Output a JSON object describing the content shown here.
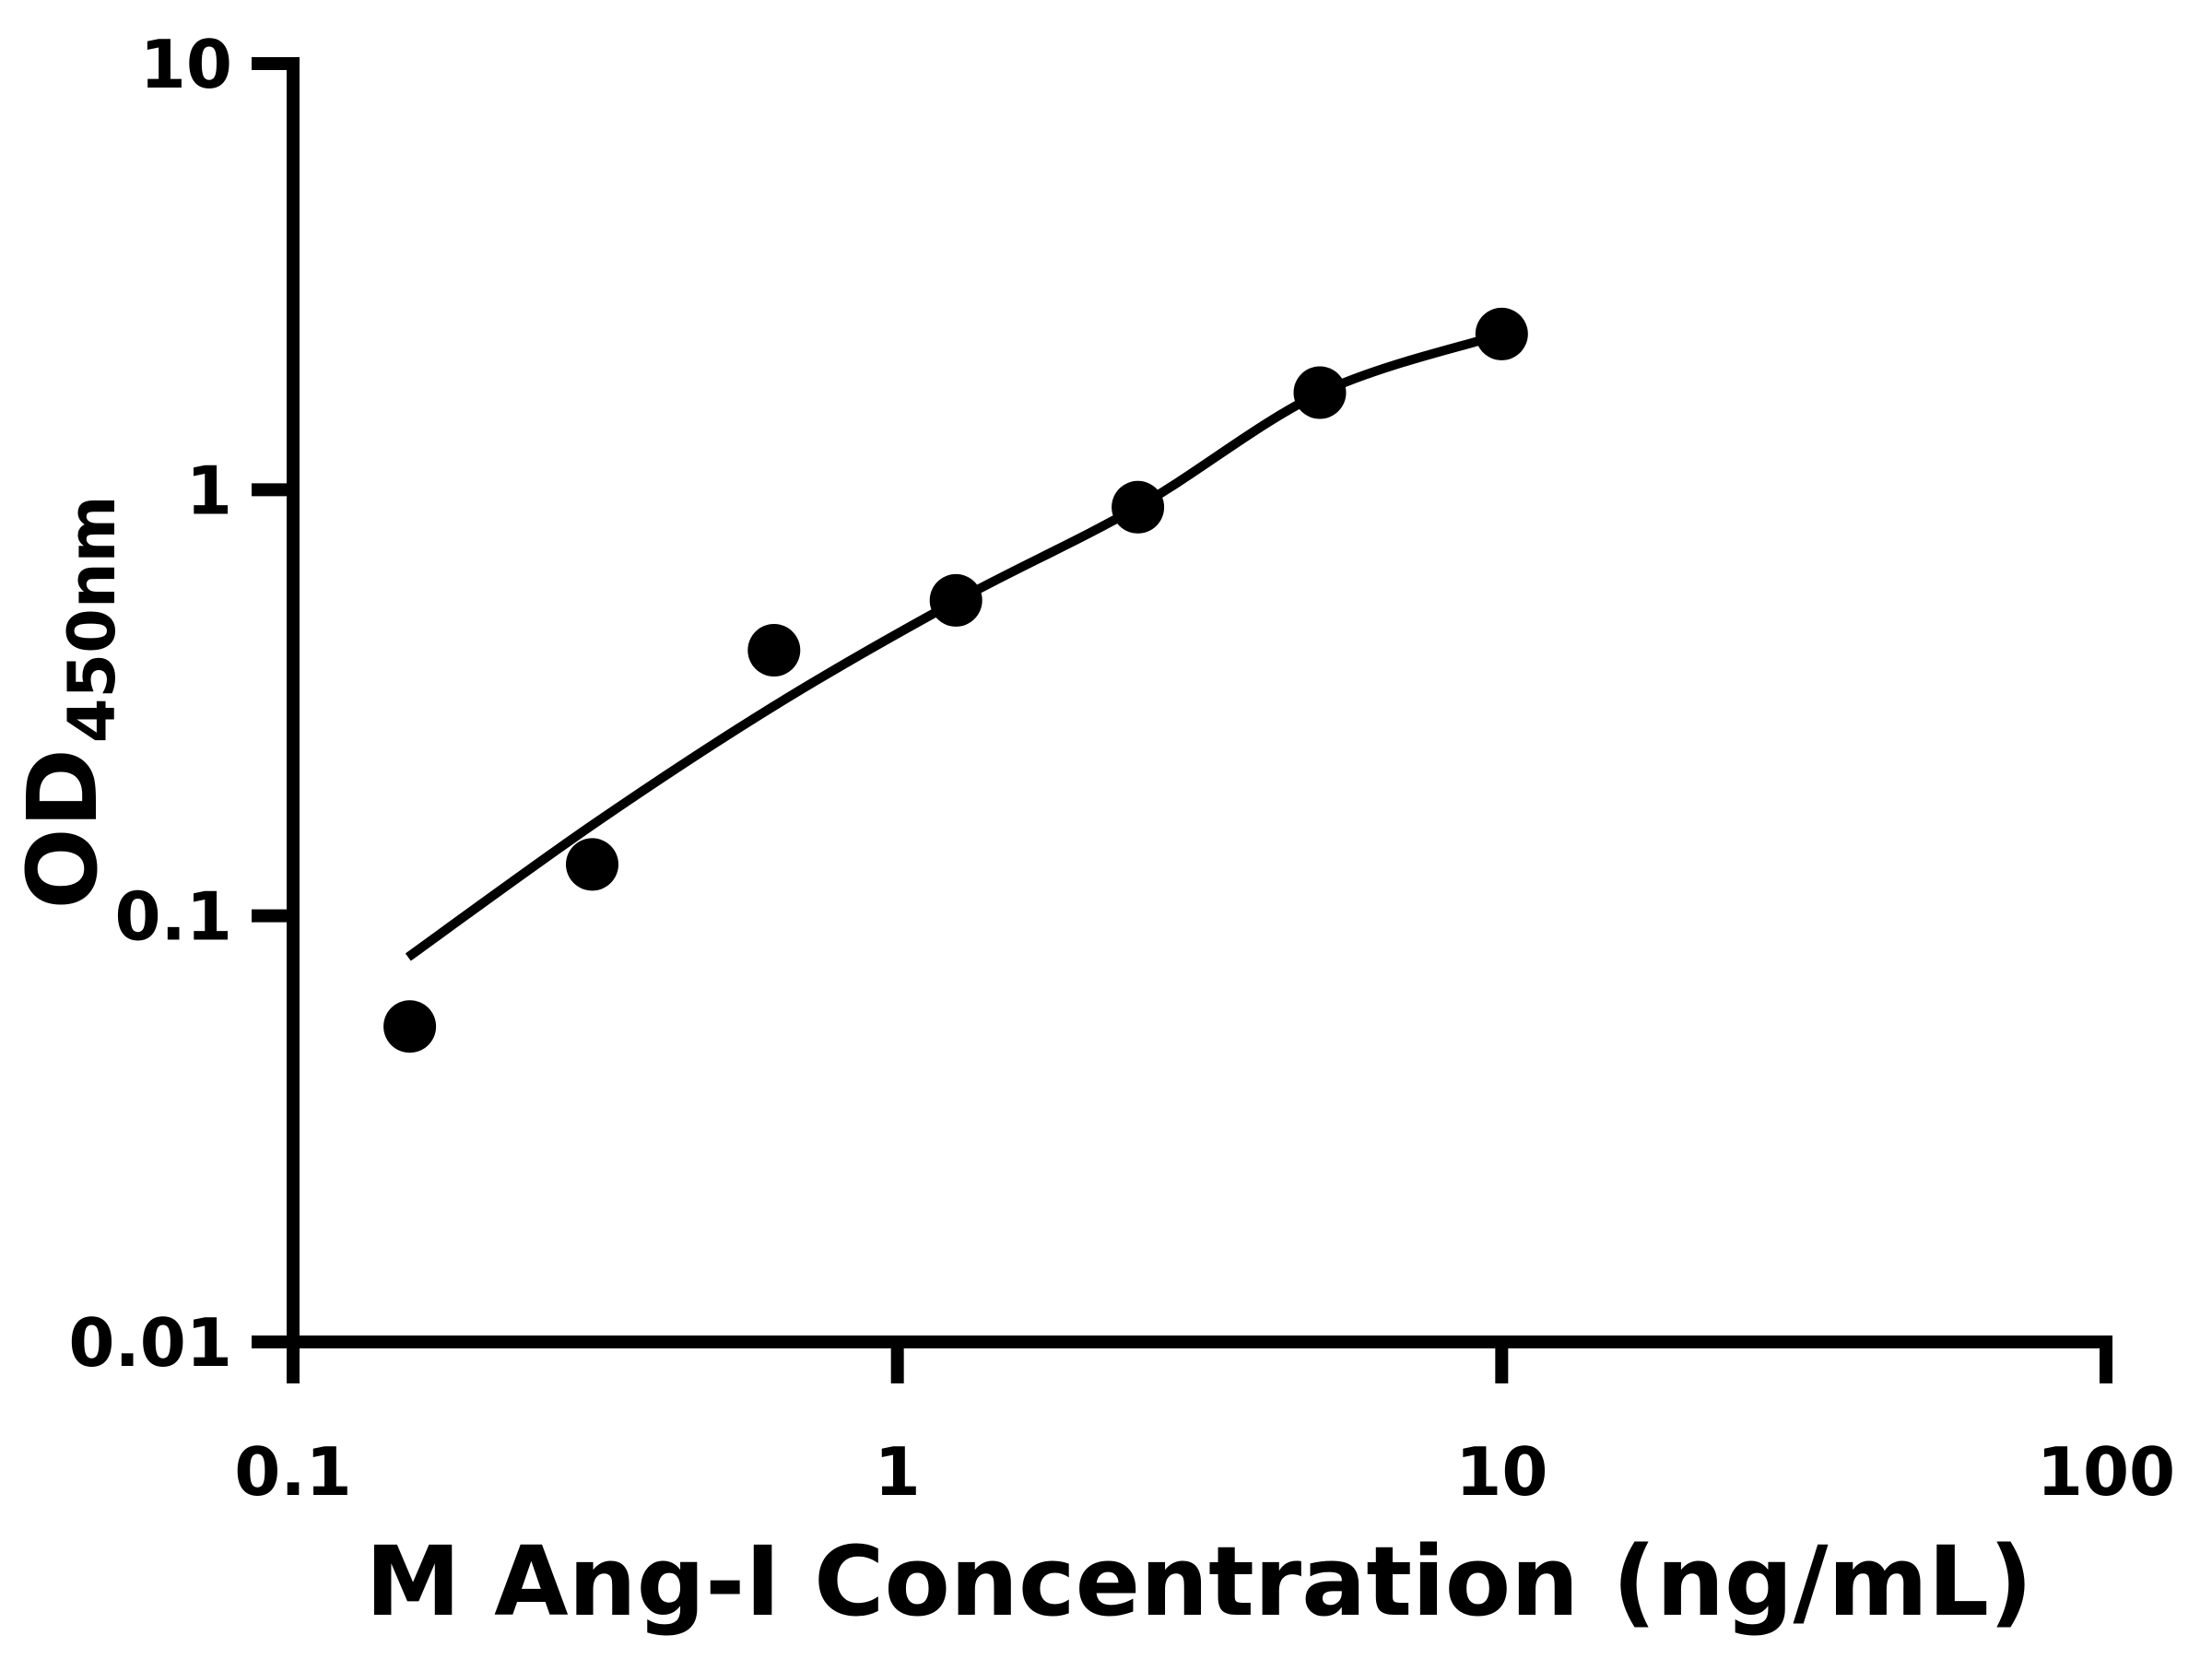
{
  "chart_data": {
    "type": "scatter",
    "title": "",
    "xlabel": "M Ang-I Concentration (ng/mL)",
    "ylabel": "OD",
    "ylabel_subscript": "450nm",
    "x_scale": "log",
    "y_scale": "log",
    "xlim": [
      0.1,
      100
    ],
    "ylim": [
      0.01,
      10
    ],
    "x_tick_values": [
      0.1,
      1,
      10,
      100
    ],
    "x_tick_labels": [
      "0.1",
      "1",
      "10",
      "100"
    ],
    "y_tick_values": [
      10,
      1,
      0.1,
      0.01
    ],
    "y_tick_labels": [
      "10",
      "1",
      "0.1",
      "0.01"
    ],
    "grid": false,
    "legend": null,
    "marker_color": "#000000",
    "line_color": "#000000",
    "background_color": "#ffffff",
    "points": [
      {
        "x": 0.156,
        "y": 0.055
      },
      {
        "x": 0.3125,
        "y": 0.132
      },
      {
        "x": 0.625,
        "y": 0.42
      },
      {
        "x": 1.25,
        "y": 0.55
      },
      {
        "x": 2.5,
        "y": 0.91
      },
      {
        "x": 5,
        "y": 1.69
      },
      {
        "x": 10,
        "y": 2.32
      }
    ],
    "fit_curve": [
      {
        "x": 0.155,
        "y": 0.08
      },
      {
        "x": 0.316,
        "y": 0.165
      },
      {
        "x": 0.63,
        "y": 0.313
      },
      {
        "x": 1.257,
        "y": 0.55
      },
      {
        "x": 2.51,
        "y": 0.914
      },
      {
        "x": 5.02,
        "y": 1.688
      },
      {
        "x": 10.06,
        "y": 2.32
      }
    ]
  }
}
